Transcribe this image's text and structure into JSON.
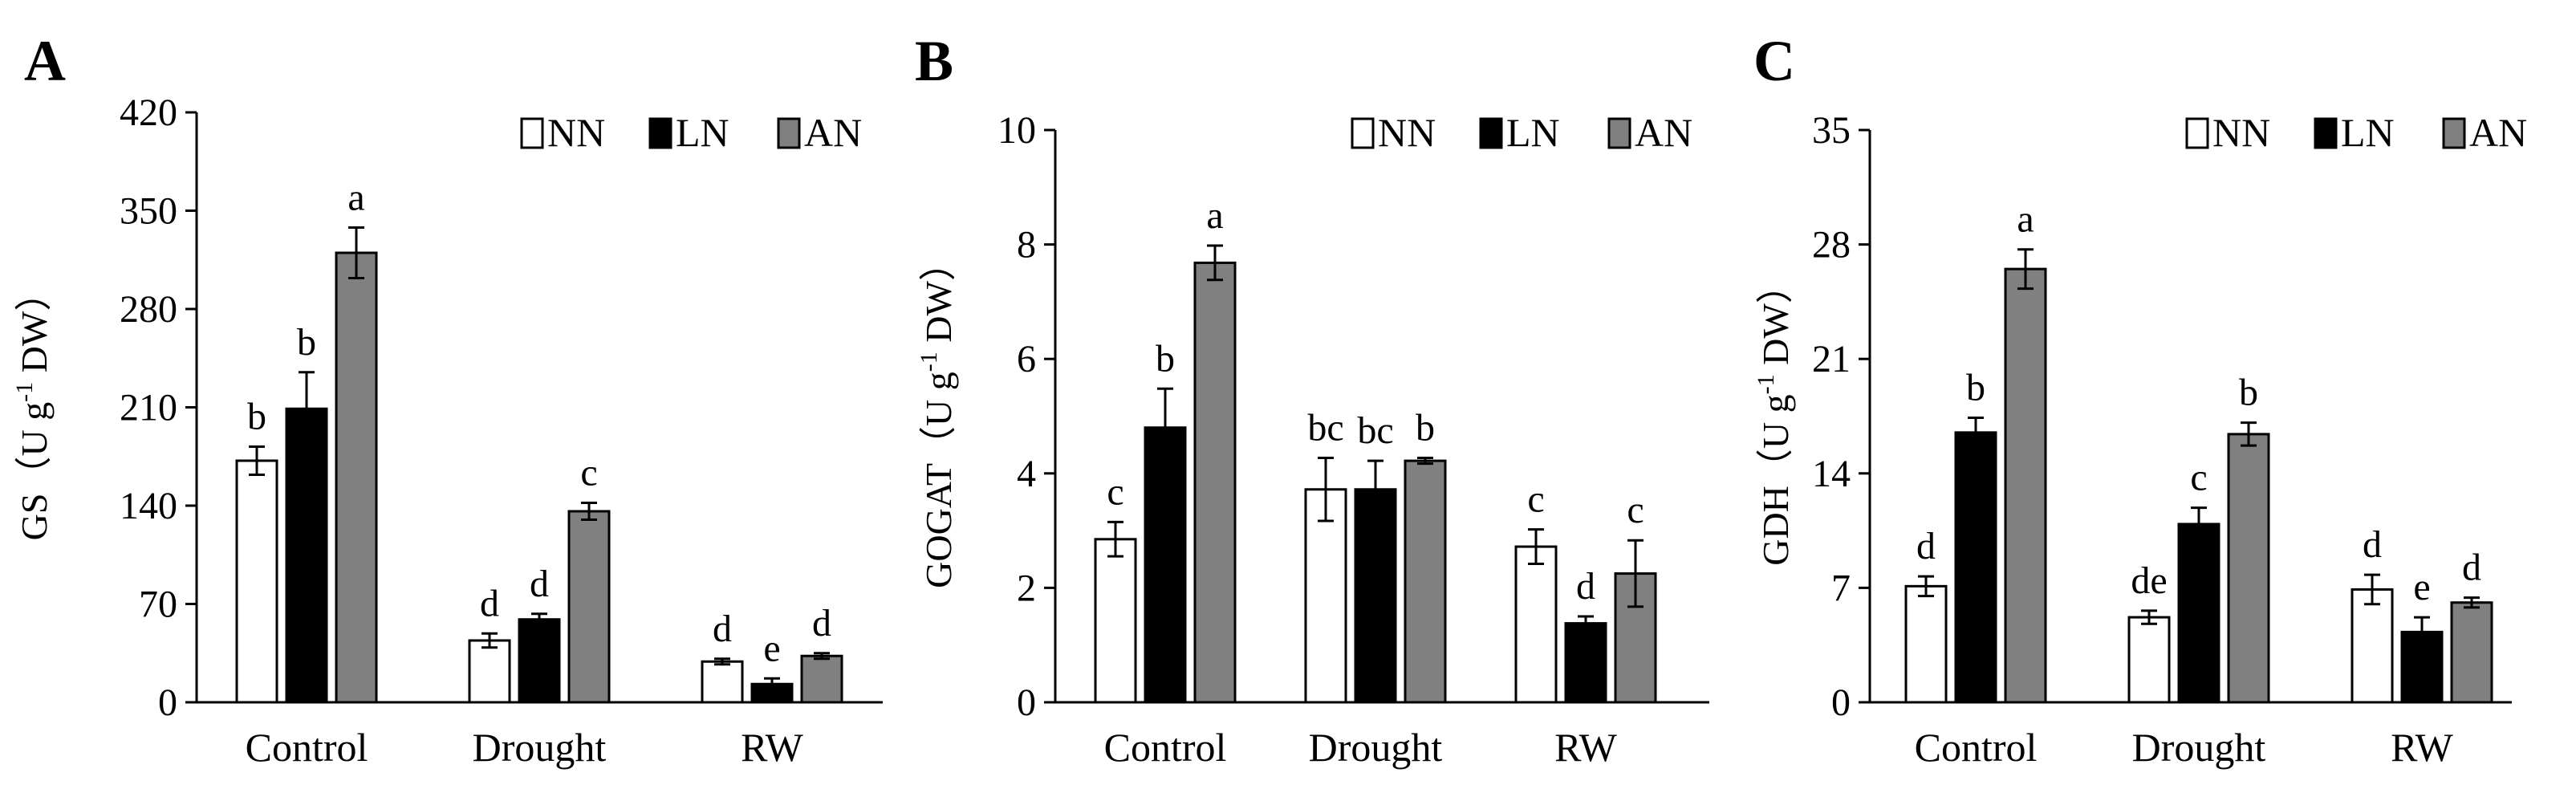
{
  "panels": [
    {
      "letter": "A",
      "chart_data": {
        "type": "bar",
        "categories": [
          "Control",
          "Drought",
          "RW"
        ],
        "series": [
          {
            "name": "NN",
            "values": [
              172,
              44,
              29
            ],
            "errors": [
              10,
              5,
              2
            ],
            "letters": [
              "b",
              "d",
              "d"
            ]
          },
          {
            "name": "LN",
            "values": [
              209,
              59,
              13
            ],
            "errors": [
              26,
              4,
              4
            ],
            "letters": [
              "b",
              "d",
              "e"
            ]
          },
          {
            "name": "AN",
            "values": [
              320,
              136,
              33
            ],
            "errors": [
              18,
              6,
              2
            ],
            "letters": [
              "a",
              "c",
              "d"
            ]
          }
        ],
        "ylabel_main": "GS（U g",
        "ylabel_sup": "-1",
        "ylabel_end": " DW）",
        "ylim": [
          0,
          420
        ],
        "yticks": [
          0,
          70,
          140,
          210,
          280,
          350,
          420
        ],
        "legend": [
          "NN",
          "LN",
          "AN"
        ],
        "legend_position": "top-right"
      }
    },
    {
      "letter": "B",
      "chart_data": {
        "type": "bar",
        "categories": [
          "Control",
          "Drought",
          "RW"
        ],
        "series": [
          {
            "name": "NN",
            "values": [
              2.85,
              3.72,
              2.72
            ],
            "errors": [
              0.3,
              0.55,
              0.3
            ],
            "letters": [
              "c",
              "bc",
              "c"
            ]
          },
          {
            "name": "LN",
            "values": [
              4.8,
              3.72,
              1.38
            ],
            "errors": [
              0.68,
              0.5,
              0.12
            ],
            "letters": [
              "b",
              "bc",
              "d"
            ]
          },
          {
            "name": "AN",
            "values": [
              7.68,
              4.22,
              2.25
            ],
            "errors": [
              0.3,
              0.05,
              0.58
            ],
            "letters": [
              "a",
              "b",
              "c"
            ]
          }
        ],
        "ylabel_main": "GOGAT（U g",
        "ylabel_sup": "-1",
        "ylabel_end": " DW）",
        "ylim": [
          0,
          10
        ],
        "yticks": [
          0,
          2,
          4,
          6,
          8,
          10
        ],
        "legend": [
          "NN",
          "LN",
          "AN"
        ],
        "legend_position": "top-right"
      }
    },
    {
      "letter": "C",
      "chart_data": {
        "type": "bar",
        "categories": [
          "Control",
          "Drought",
          "RW"
        ],
        "series": [
          {
            "name": "NN",
            "values": [
              7.1,
              5.2,
              6.9
            ],
            "errors": [
              0.6,
              0.4,
              0.9
            ],
            "letters": [
              "d",
              "de",
              "d"
            ]
          },
          {
            "name": "LN",
            "values": [
              16.5,
              10.9,
              4.3
            ],
            "errors": [
              0.9,
              1.0,
              0.9
            ],
            "letters": [
              "b",
              "c",
              "e"
            ]
          },
          {
            "name": "AN",
            "values": [
              26.5,
              16.4,
              6.1
            ],
            "errors": [
              1.2,
              0.7,
              0.3
            ],
            "letters": [
              "a",
              "b",
              "d"
            ]
          }
        ],
        "ylabel_main": "GDH（U g",
        "ylabel_sup": "-1",
        "ylabel_end": " DW）",
        "ylim": [
          0,
          35
        ],
        "yticks": [
          0,
          7,
          14,
          21,
          28,
          35
        ],
        "legend": [
          "NN",
          "LN",
          "AN"
        ],
        "legend_position": "top-right"
      }
    }
  ],
  "colors": {
    "NN": "#ffffff",
    "LN": "#000000",
    "AN": "#808080",
    "outline": "#000000"
  }
}
